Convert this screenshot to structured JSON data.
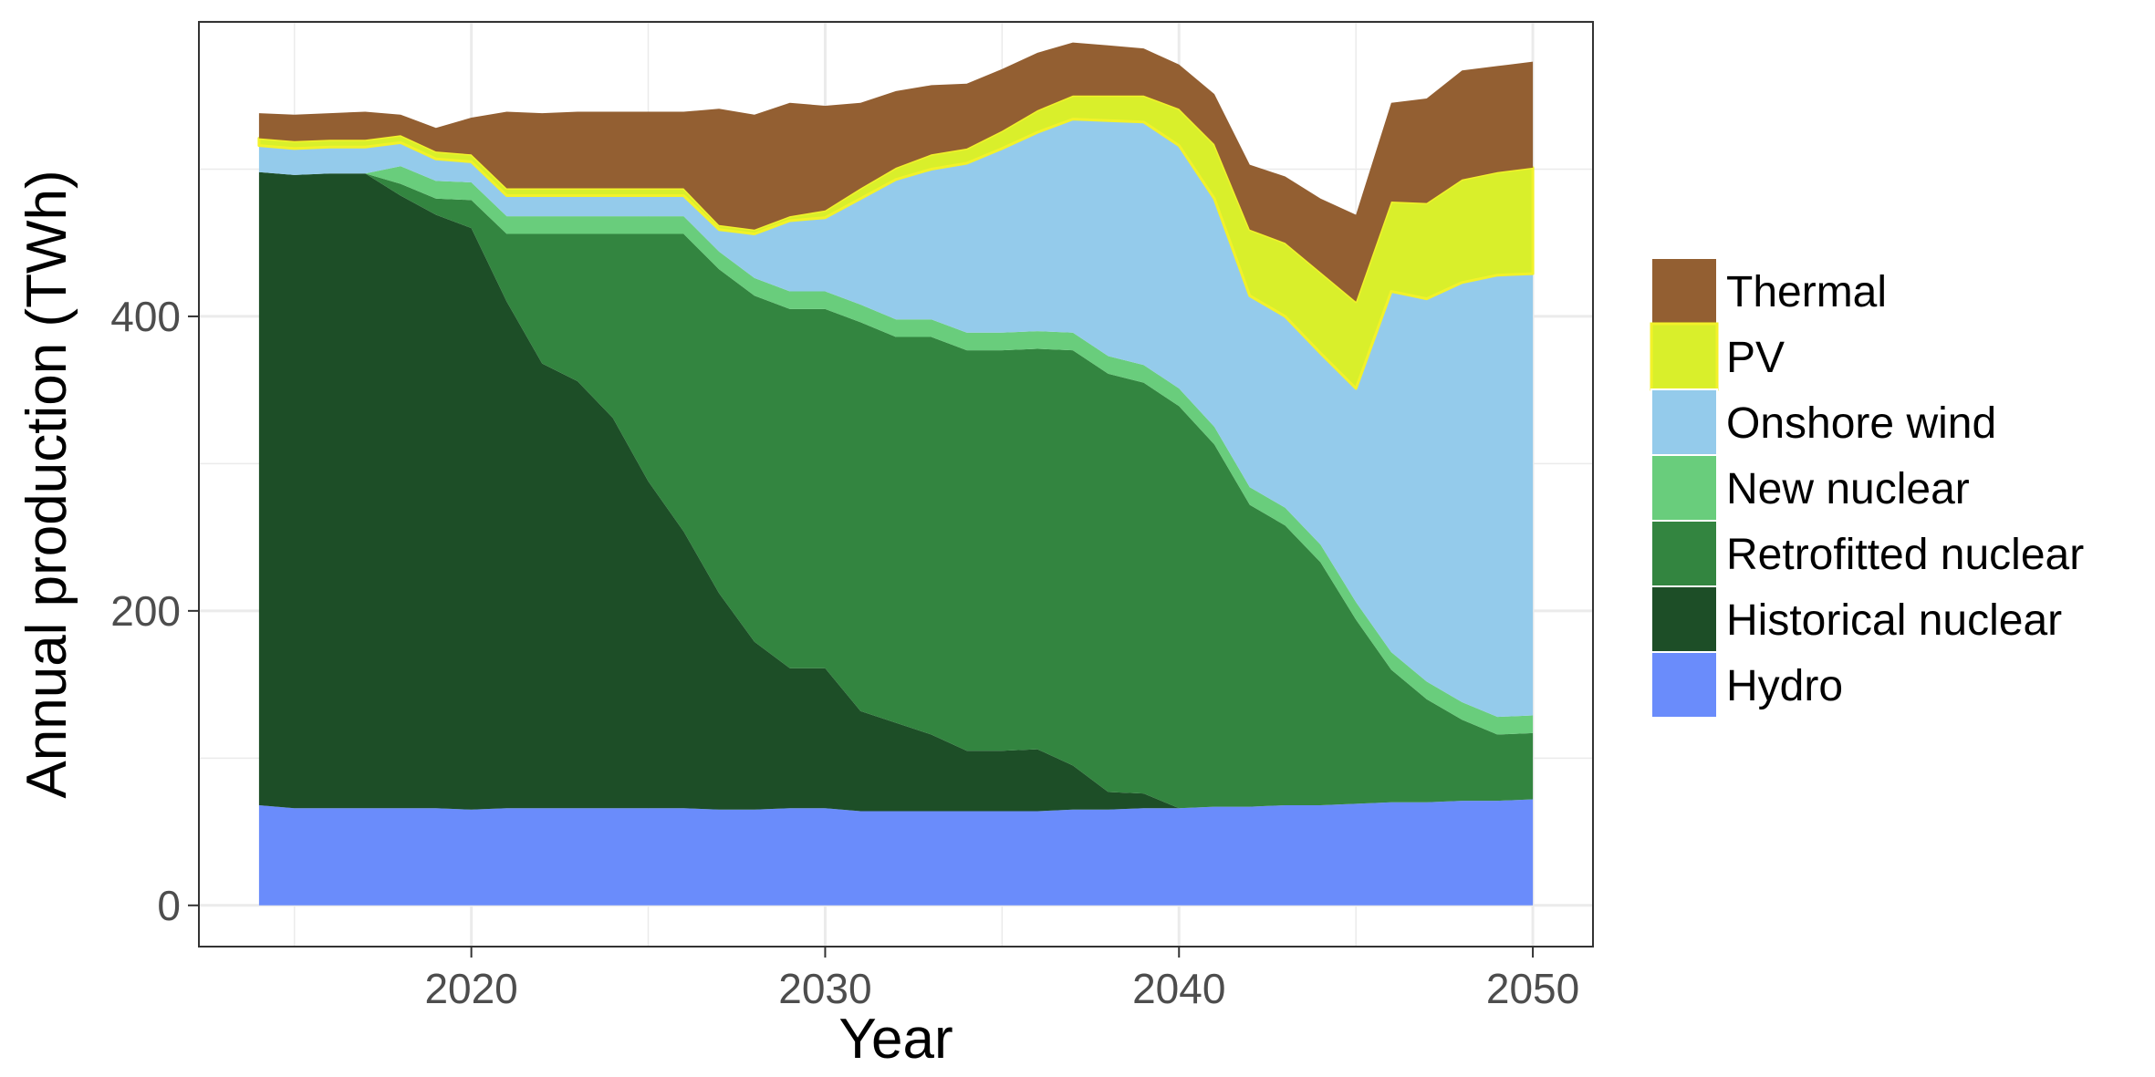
{
  "chart_data": {
    "type": "area",
    "stacked": true,
    "xlabel": "Year",
    "ylabel": "Annual production (TWh)",
    "xlim": [
      2012.3,
      2051.7
    ],
    "ylim": [
      -28,
      600
    ],
    "x_ticks": [
      2020,
      2030,
      2040,
      2050
    ],
    "y_ticks": [
      0,
      200,
      400
    ],
    "grid": true,
    "legend_position": "right",
    "x": [
      2014,
      2015,
      2016,
      2017,
      2018,
      2019,
      2020,
      2021,
      2022,
      2023,
      2024,
      2025,
      2026,
      2027,
      2028,
      2029,
      2030,
      2031,
      2032,
      2033,
      2034,
      2035,
      2036,
      2037,
      2038,
      2039,
      2040,
      2041,
      2042,
      2043,
      2044,
      2045,
      2046,
      2047,
      2048,
      2049,
      2050
    ],
    "series": [
      {
        "name": "Hydro",
        "color": "#6a8cfb",
        "values": [
          68,
          66,
          66,
          66,
          66,
          66,
          65,
          66,
          66,
          66,
          66,
          66,
          66,
          65,
          65,
          66,
          66,
          64,
          64,
          64,
          64,
          64,
          64,
          65,
          65,
          66,
          66,
          67,
          67,
          68,
          68,
          69,
          70,
          70,
          71,
          71,
          72
        ]
      },
      {
        "name": "Historical nuclear",
        "color": "#1d4e27",
        "values": [
          430,
          430,
          431,
          431,
          416,
          403,
          395,
          344,
          302,
          290,
          265,
          222,
          188,
          147,
          114,
          95,
          95,
          68,
          60,
          52,
          41,
          41,
          42,
          30,
          12,
          10,
          0,
          0,
          0,
          0,
          0,
          0,
          0,
          0,
          0,
          0,
          0
        ]
      },
      {
        "name": "Retrofitted nuclear",
        "color": "#338540",
        "values": [
          0,
          0,
          0,
          0,
          8,
          11,
          19,
          46,
          88,
          100,
          125,
          168,
          202,
          220,
          235,
          244,
          244,
          264,
          262,
          270,
          272,
          272,
          272,
          282,
          284,
          279,
          273,
          246,
          205,
          190,
          165,
          125,
          90,
          70,
          55,
          45,
          45
        ]
      },
      {
        "name": "New nuclear",
        "color": "#69cd7c",
        "values": [
          0,
          0,
          0,
          0,
          12,
          12,
          12,
          12,
          12,
          12,
          12,
          12,
          12,
          12,
          12,
          12,
          12,
          12,
          12,
          12,
          12,
          12,
          12,
          12,
          12,
          12,
          12,
          12,
          12,
          12,
          12,
          12,
          12,
          12,
          12,
          12,
          12
        ]
      },
      {
        "name": "Onshore wind",
        "color": "#94cbeb",
        "values": [
          18,
          18,
          18,
          18,
          16,
          15,
          14,
          14,
          14,
          14,
          14,
          14,
          14,
          15,
          30,
          48,
          50,
          72,
          95,
          102,
          115,
          125,
          135,
          145,
          160,
          165,
          165,
          155,
          130,
          130,
          130,
          145,
          245,
          260,
          285,
          300,
          300
        ]
      },
      {
        "name": "PV",
        "color": "#d9ef2b",
        "values": [
          5,
          5,
          5,
          5,
          5,
          5,
          5,
          5,
          5,
          5,
          5,
          5,
          5,
          3,
          3,
          3,
          5,
          7,
          8,
          10,
          10,
          12,
          15,
          16,
          17,
          18,
          25,
          37,
          45,
          50,
          55,
          59,
          61,
          65,
          70,
          70,
          72
        ]
      },
      {
        "name": "Thermal",
        "color": "#935f32",
        "values": [
          17,
          18,
          18,
          19,
          14,
          16,
          25,
          52,
          51,
          52,
          52,
          52,
          52,
          79,
          78,
          77,
          71,
          58,
          52,
          47,
          44,
          42,
          39,
          36,
          34,
          32,
          30,
          34,
          44,
          45,
          50,
          59,
          67,
          71,
          74,
          72,
          72
        ]
      }
    ]
  }
}
